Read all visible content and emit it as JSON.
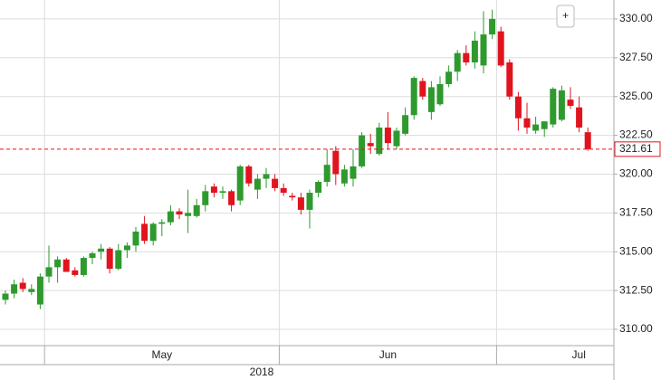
{
  "chart_data": {
    "type": "candlestick",
    "ylim": [
      308.95,
      331.22
    ],
    "yticks": [
      {
        "value": 310,
        "label": "310.00"
      },
      {
        "value": 312.5,
        "label": "312.50"
      },
      {
        "value": 315,
        "label": "315.00"
      },
      {
        "value": 317.5,
        "label": "317.50"
      },
      {
        "value": 320,
        "label": "320.00"
      },
      {
        "value": 322.5,
        "label": "322.50"
      },
      {
        "value": 325,
        "label": "325.00"
      },
      {
        "value": 327.5,
        "label": "327.50"
      },
      {
        "value": 330,
        "label": "330.00"
      }
    ],
    "grid": true,
    "up_color": "#2e9a2e",
    "down_color": "#e0141e",
    "last_price": 321.61,
    "xticks": [
      {
        "value": 5,
        "label": "May"
      },
      {
        "value": 32,
        "label": "Jun"
      },
      {
        "value": 57,
        "label": "Jul"
      }
    ],
    "year_label": "2018",
    "button": "+",
    "open": [
      311.9,
      312.3,
      313.0,
      312.4,
      311.6,
      313.4,
      314.0,
      314.5,
      313.8,
      313.5,
      314.6,
      315.0,
      315.2,
      313.9,
      315.1,
      315.4,
      316.8,
      315.7,
      316.8,
      316.9,
      317.6,
      317.3,
      317.3,
      318.0,
      319.2,
      318.8,
      318.9,
      318.3,
      320.5,
      319.0,
      319.7,
      319.7,
      319.1,
      318.6,
      318.5,
      317.7,
      318.8,
      319.5,
      321.5,
      319.4,
      319.7,
      320.5,
      322.0,
      321.3,
      323.0,
      321.8,
      322.6,
      323.8,
      326.0,
      324.0,
      324.5,
      325.8,
      326.6,
      327.8,
      327.2,
      327.0,
      329.0,
      329.2,
      327.2,
      325.0,
      323.6,
      322.8,
      322.9,
      323.2,
      323.5,
      324.8,
      324.3,
      322.7
    ],
    "high": [
      312.5,
      313.2,
      313.3,
      312.9,
      313.6,
      315.4,
      314.7,
      314.6,
      314.0,
      314.7,
      315.0,
      315.5,
      315.3,
      315.5,
      315.6,
      316.6,
      317.3,
      316.9,
      317.1,
      318.0,
      317.8,
      319.0,
      318.4,
      319.3,
      319.4,
      319.2,
      319.0,
      320.6,
      320.6,
      320.0,
      320.4,
      320.0,
      319.4,
      318.8,
      318.8,
      319.0,
      319.6,
      321.6,
      321.8,
      320.6,
      321.6,
      322.7,
      322.6,
      323.3,
      324.0,
      323.0,
      324.3,
      326.3,
      326.2,
      326.0,
      326.3,
      327.0,
      328.0,
      328.3,
      329.2,
      330.5,
      330.6,
      329.5,
      327.4,
      325.3,
      324.6,
      323.7,
      323.4,
      325.6,
      325.7,
      325.6,
      325.0,
      323.0
    ],
    "low": [
      311.6,
      312.0,
      312.4,
      312.2,
      311.3,
      313.0,
      313.0,
      313.7,
      313.4,
      313.4,
      314.2,
      314.5,
      313.6,
      313.8,
      314.6,
      315.0,
      315.5,
      315.4,
      316.0,
      316.7,
      317.1,
      316.2,
      317.2,
      317.6,
      318.5,
      318.4,
      317.6,
      318.0,
      319.2,
      318.4,
      319.1,
      318.9,
      318.6,
      318.3,
      317.4,
      316.5,
      318.5,
      319.2,
      319.3,
      319.2,
      319.2,
      320.4,
      321.3,
      321.2,
      321.6,
      321.6,
      322.5,
      323.5,
      324.8,
      323.5,
      324.4,
      325.6,
      326.0,
      327.0,
      326.8,
      326.5,
      328.7,
      326.9,
      324.8,
      322.8,
      322.6,
      322.6,
      322.4,
      323.0,
      323.4,
      324.2,
      322.7,
      321.5
    ],
    "close": [
      312.3,
      312.9,
      312.6,
      312.6,
      313.4,
      314.0,
      314.5,
      313.7,
      313.5,
      314.6,
      314.9,
      315.2,
      313.9,
      315.1,
      315.4,
      316.3,
      315.7,
      316.8,
      316.9,
      317.6,
      317.4,
      317.5,
      318.0,
      318.9,
      318.8,
      318.9,
      318.0,
      320.5,
      319.4,
      319.7,
      320.0,
      319.1,
      318.8,
      318.5,
      317.7,
      318.8,
      319.5,
      320.6,
      320.0,
      320.3,
      320.5,
      322.5,
      321.8,
      323.0,
      322.0,
      322.8,
      323.8,
      326.2,
      325.0,
      325.6,
      325.8,
      326.6,
      327.8,
      327.2,
      328.6,
      329.0,
      330.0,
      327.0,
      325.0,
      323.6,
      323.0,
      323.2,
      323.4,
      325.5,
      325.4,
      324.4,
      323.0,
      321.61
    ]
  }
}
